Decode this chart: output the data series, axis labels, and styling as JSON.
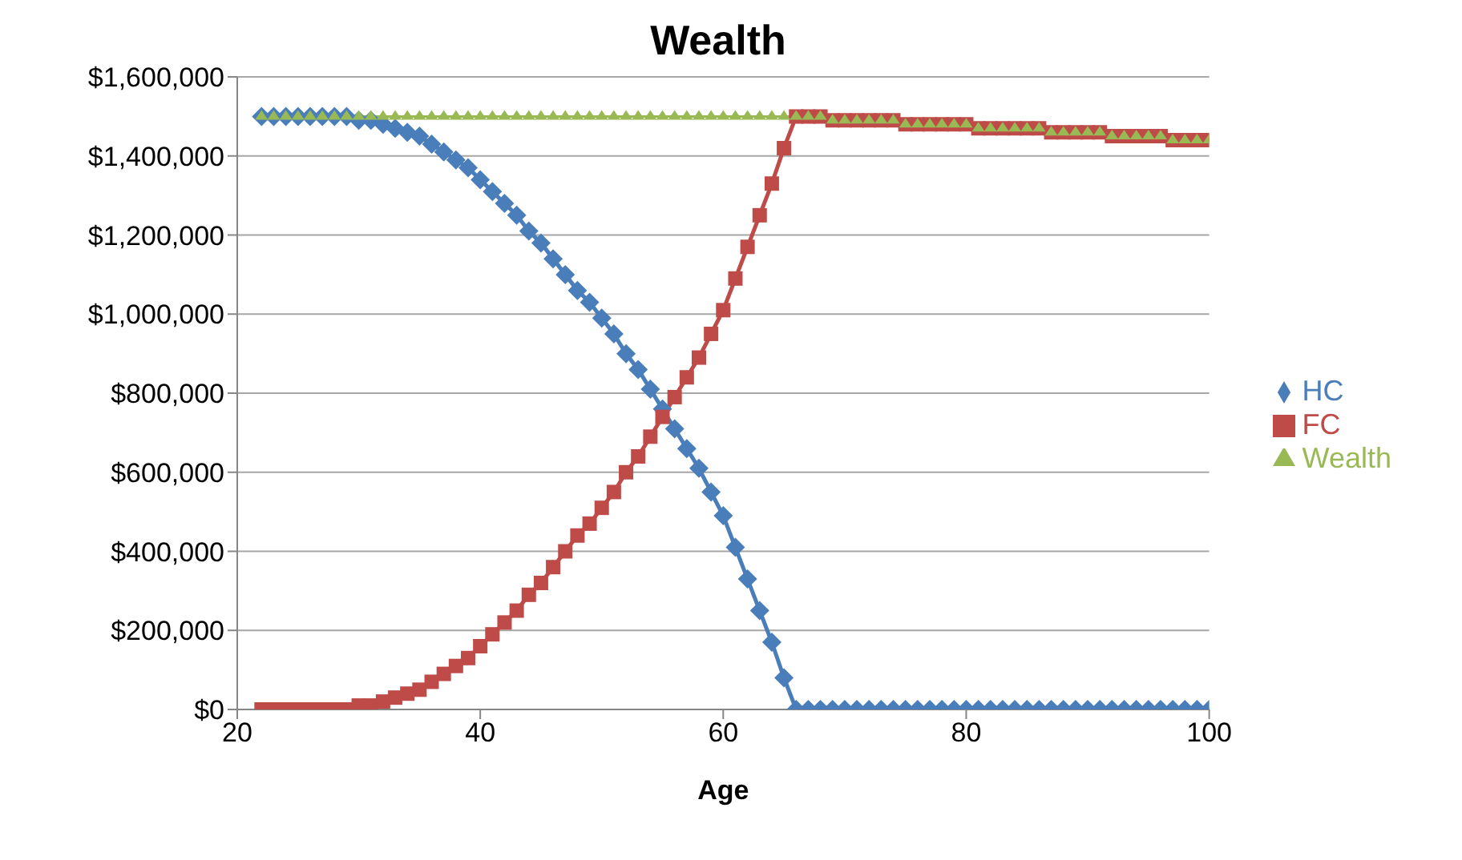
{
  "chart_data": {
    "type": "line",
    "title": "Wealth",
    "xlabel": "Age",
    "x": [
      22,
      23,
      24,
      25,
      26,
      27,
      28,
      29,
      30,
      31,
      32,
      33,
      34,
      35,
      36,
      37,
      38,
      39,
      40,
      41,
      42,
      43,
      44,
      45,
      46,
      47,
      48,
      49,
      50,
      51,
      52,
      53,
      54,
      55,
      56,
      57,
      58,
      59,
      60,
      61,
      62,
      63,
      64,
      65,
      66,
      67,
      68,
      69,
      70,
      71,
      72,
      73,
      74,
      75,
      76,
      77,
      78,
      79,
      80,
      81,
      82,
      83,
      84,
      85,
      86,
      87,
      88,
      89,
      90,
      91,
      92,
      93,
      94,
      95,
      96,
      97,
      98,
      99,
      100
    ],
    "series": [
      {
        "name": "HC",
        "color": "#4a7ebb",
        "marker": "diamond",
        "values": [
          1500000,
          1500000,
          1500000,
          1500000,
          1500000,
          1500000,
          1500000,
          1500000,
          1490000,
          1490000,
          1480000,
          1470000,
          1460000,
          1450000,
          1430000,
          1410000,
          1390000,
          1370000,
          1340000,
          1310000,
          1280000,
          1250000,
          1210000,
          1180000,
          1140000,
          1100000,
          1060000,
          1030000,
          990000,
          950000,
          900000,
          860000,
          810000,
          760000,
          710000,
          660000,
          610000,
          550000,
          490000,
          410000,
          330000,
          250000,
          170000,
          80000,
          0,
          0,
          0,
          0,
          0,
          0,
          0,
          0,
          0,
          0,
          0,
          0,
          0,
          0,
          0,
          0,
          0,
          0,
          0,
          0,
          0,
          0,
          0,
          0,
          0,
          0,
          0,
          0,
          0,
          0,
          0,
          0,
          0,
          0,
          0
        ]
      },
      {
        "name": "FC",
        "color": "#be4b48",
        "marker": "square",
        "values": [
          0,
          0,
          0,
          0,
          0,
          0,
          0,
          0,
          10000,
          10000,
          20000,
          30000,
          40000,
          50000,
          70000,
          90000,
          110000,
          130000,
          160000,
          190000,
          220000,
          250000,
          290000,
          320000,
          360000,
          400000,
          440000,
          470000,
          510000,
          550000,
          600000,
          640000,
          690000,
          740000,
          790000,
          840000,
          890000,
          950000,
          1010000,
          1090000,
          1170000,
          1250000,
          1330000,
          1420000,
          1500000,
          1500000,
          1500000,
          1490000,
          1490000,
          1490000,
          1490000,
          1490000,
          1490000,
          1480000,
          1480000,
          1480000,
          1480000,
          1480000,
          1480000,
          1470000,
          1470000,
          1470000,
          1470000,
          1470000,
          1470000,
          1460000,
          1460000,
          1460000,
          1460000,
          1460000,
          1450000,
          1450000,
          1450000,
          1450000,
          1450000,
          1440000,
          1440000,
          1440000,
          1440000
        ]
      },
      {
        "name": "Wealth",
        "color": "#98b954",
        "marker": "triangle",
        "values": [
          1500000,
          1500000,
          1500000,
          1500000,
          1500000,
          1500000,
          1500000,
          1500000,
          1500000,
          1500000,
          1500000,
          1500000,
          1500000,
          1500000,
          1500000,
          1500000,
          1500000,
          1500000,
          1500000,
          1500000,
          1500000,
          1500000,
          1500000,
          1500000,
          1500000,
          1500000,
          1500000,
          1500000,
          1500000,
          1500000,
          1500000,
          1500000,
          1500000,
          1500000,
          1500000,
          1500000,
          1500000,
          1500000,
          1500000,
          1500000,
          1500000,
          1500000,
          1500000,
          1500000,
          1500000,
          1500000,
          1500000,
          1490000,
          1490000,
          1490000,
          1490000,
          1490000,
          1490000,
          1480000,
          1480000,
          1480000,
          1480000,
          1480000,
          1480000,
          1470000,
          1470000,
          1470000,
          1470000,
          1470000,
          1470000,
          1460000,
          1460000,
          1460000,
          1460000,
          1460000,
          1450000,
          1450000,
          1450000,
          1450000,
          1450000,
          1440000,
          1440000,
          1440000,
          1440000
        ]
      }
    ],
    "xlim": [
      20,
      100
    ],
    "xticks": [
      20,
      40,
      60,
      80,
      100
    ],
    "ylim": [
      0,
      1600000
    ],
    "yticks": [
      {
        "value": 0,
        "label": "$0"
      },
      {
        "value": 200000,
        "label": "$200,000"
      },
      {
        "value": 400000,
        "label": "$400,000"
      },
      {
        "value": 600000,
        "label": "$600,000"
      },
      {
        "value": 800000,
        "label": "$800,000"
      },
      {
        "value": 1000000,
        "label": "$1,000,000"
      },
      {
        "value": 1200000,
        "label": "$1,200,000"
      },
      {
        "value": 1400000,
        "label": "$1,400,000"
      },
      {
        "value": 1600000,
        "label": "$1,600,000"
      }
    ],
    "grid": "y",
    "legend": "right"
  }
}
